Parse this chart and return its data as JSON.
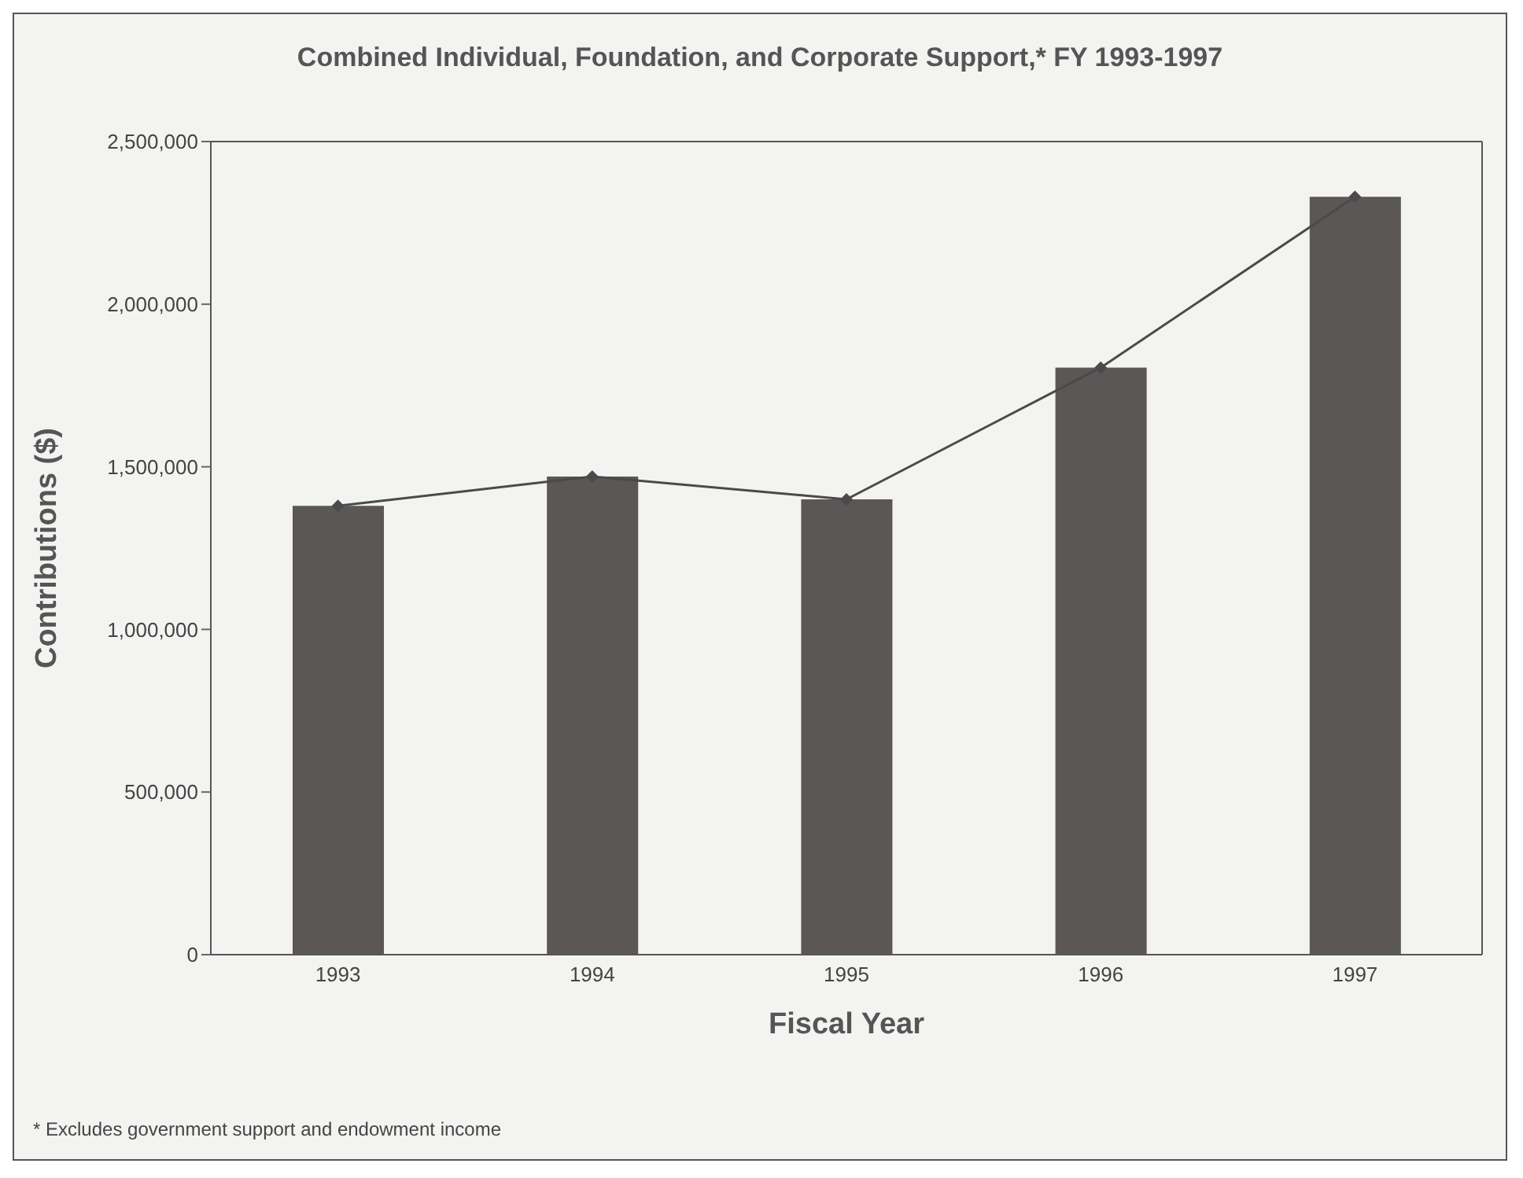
{
  "chart_data": {
    "type": "bar",
    "title": "Combined Individual, Foundation, and Corporate Support,* FY 1993-1997",
    "xlabel": "Fiscal Year",
    "ylabel": "Contributions ($)",
    "categories": [
      "1993",
      "1994",
      "1995",
      "1996",
      "1997"
    ],
    "series": [
      {
        "color": "#5a5756",
        "values": [
          1380000,
          1470000,
          1400000,
          1805000,
          2330000
        ]
      },
      {
        "type": "line",
        "color": "#4a4a4a",
        "marker": "diamond",
        "values": [
          1380000,
          1470000,
          1400000,
          1805000,
          2330000
        ]
      }
    ],
    "ylim": [
      0,
      2500000
    ],
    "yticks": [
      {
        "value": 0,
        "label": "0"
      },
      {
        "value": 500000,
        "label": "500,000"
      },
      {
        "value": 1000000,
        "label": "1,000,000"
      },
      {
        "value": 1500000,
        "label": "1,500,000"
      },
      {
        "value": 2000000,
        "label": "2,000,000"
      },
      {
        "value": 2500000,
        "label": "2,500,000"
      }
    ],
    "grid": false,
    "legend": false,
    "annotations": [
      "* Excludes government support and endowment income"
    ]
  }
}
